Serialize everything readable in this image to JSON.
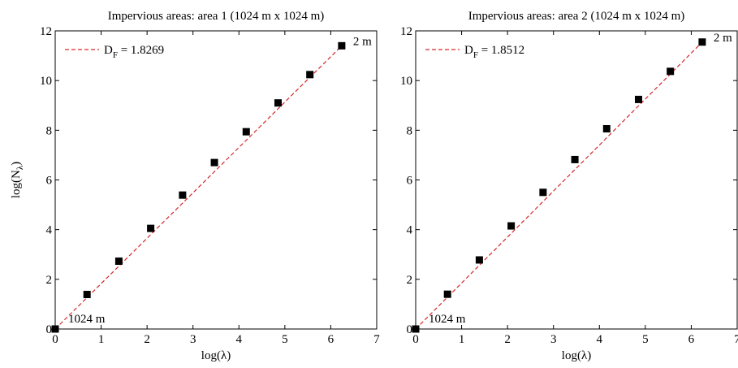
{
  "chart_data": [
    {
      "type": "scatter",
      "title": "Impervious areas: area 1 (1024 m x 1024 m)",
      "xlabel": "log(λ)",
      "ylabel": "log(N",
      "ylabel_sub": "λ",
      "ylabel_close": ")",
      "xlim": [
        0,
        7
      ],
      "ylim": [
        0,
        12
      ],
      "xticks": [
        "0",
        "1",
        "2",
        "3",
        "4",
        "5",
        "6",
        "7"
      ],
      "yticks": [
        "0",
        "2",
        "4",
        "6",
        "8",
        "10",
        "12"
      ],
      "legend": {
        "prefix": "D",
        "sub": "F",
        "suffix": " = 1.8269",
        "location": "top-left"
      },
      "fit_line": {
        "x": [
          0,
          6.24
        ],
        "y": [
          0,
          11.4
        ]
      },
      "points": {
        "x": [
          0,
          0.693,
          1.386,
          2.079,
          2.773,
          3.466,
          4.159,
          4.852,
          5.545,
          6.238
        ],
        "y": [
          0,
          1.39,
          2.73,
          4.05,
          5.39,
          6.7,
          7.94,
          9.1,
          10.24,
          11.4
        ]
      },
      "annotations": [
        {
          "text": "1024 m",
          "x": 0,
          "y": 0
        },
        {
          "text": "2 m",
          "x": 6.238,
          "y": 11.4
        }
      ],
      "colors": {
        "fit": "#d62728",
        "marker": "#000000"
      }
    },
    {
      "type": "scatter",
      "title": "Impervious areas: area 2 (1024 m x 1024 m)",
      "xlabel": "log(λ)",
      "ylabel": "",
      "xlim": [
        0,
        7
      ],
      "ylim": [
        0,
        12
      ],
      "xticks": [
        "0",
        "1",
        "2",
        "3",
        "4",
        "5",
        "6",
        "7"
      ],
      "yticks": [
        "0",
        "2",
        "4",
        "6",
        "8",
        "10",
        "12"
      ],
      "legend": {
        "prefix": "D",
        "sub": "F",
        "suffix": " = 1.8512",
        "location": "top-left"
      },
      "fit_line": {
        "x": [
          0,
          6.24
        ],
        "y": [
          0,
          11.55
        ]
      },
      "points": {
        "x": [
          0,
          0.693,
          1.386,
          2.079,
          2.773,
          3.466,
          4.159,
          4.852,
          5.545,
          6.238
        ],
        "y": [
          0,
          1.4,
          2.78,
          4.15,
          5.5,
          6.82,
          8.06,
          9.24,
          10.37,
          11.55
        ]
      },
      "annotations": [
        {
          "text": "1024 m",
          "x": 0,
          "y": 0
        },
        {
          "text": "2 m",
          "x": 6.238,
          "y": 11.55
        }
      ],
      "colors": {
        "fit": "#d62728",
        "marker": "#000000"
      }
    }
  ]
}
